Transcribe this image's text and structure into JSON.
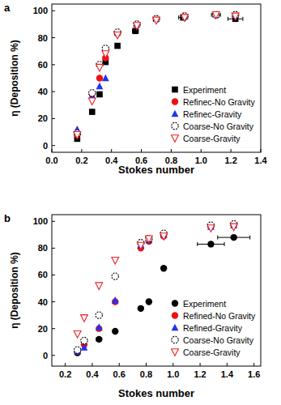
{
  "chart_data": [
    {
      "type": "scatter",
      "title": "a",
      "x_label": "Stokes number",
      "y_label": "η (Deposition %)",
      "xlim": [
        0,
        1.4
      ],
      "ylim": [
        -5,
        105
      ],
      "xticks": [
        {
          "value": 0,
          "label": "0.0"
        },
        0.2,
        0.4,
        0.6,
        0.8,
        {
          "value": 1,
          "label": "1.0"
        },
        1.2,
        1.4
      ],
      "yticks": [
        0,
        20,
        40,
        60,
        80,
        100
      ],
      "legend": "lower right",
      "series": [
        {
          "name": "Experiment",
          "color": "#000000",
          "marker": "square",
          "x": [
            0.17,
            0.27,
            0.32,
            0.36,
            0.44,
            0.56,
            0.88,
            1.1,
            1.23
          ],
          "values": [
            5,
            25,
            38,
            62,
            74,
            85,
            95,
            97,
            94
          ],
          "x_errors": [
            null,
            null,
            null,
            null,
            null,
            0.02,
            0.03,
            0.03,
            0.05
          ]
        },
        {
          "name": "Refinec-No Gravity",
          "color": "#ee1111",
          "marker": "circle",
          "x": [
            0.17,
            0.27,
            0.32,
            0.36,
            0.44,
            0.57,
            0.7,
            0.89,
            1.1,
            1.23
          ],
          "values": [
            8,
            38,
            50,
            65,
            83,
            90,
            94,
            96,
            97,
            97
          ]
        },
        {
          "name": "Refinec-Gravity",
          "color": "#2233ee",
          "marker": "triangle",
          "x": [
            0.17,
            0.27,
            0.32,
            0.36,
            0.44,
            0.57,
            0.7,
            0.89,
            1.1,
            1.23
          ],
          "values": [
            12,
            37,
            44,
            50,
            84,
            90,
            94,
            96,
            97,
            97
          ]
        },
        {
          "name": "Coarse-No Gravity",
          "color": "#000000",
          "marker": "circle_open",
          "x": [
            0.17,
            0.27,
            0.32,
            0.36,
            0.44,
            0.57,
            0.7,
            0.89,
            1.1,
            1.23
          ],
          "values": [
            9,
            39,
            60,
            72,
            84,
            90,
            94,
            96,
            97,
            97
          ]
        },
        {
          "name": "Coarse-Gravity",
          "color": "#ee2222",
          "marker": "triangle_down_open",
          "x": [
            0.17,
            0.27,
            0.32,
            0.36,
            0.44,
            0.57,
            0.7,
            0.89,
            1.1,
            1.23
          ],
          "values": [
            8,
            33,
            58,
            68,
            82,
            89,
            93,
            95,
            97,
            96
          ]
        }
      ]
    },
    {
      "type": "scatter",
      "title": "b",
      "x_label": "Stokes number",
      "y_label": "η (Deposition %)",
      "xlim": [
        0.1,
        1.65
      ],
      "ylim": [
        -8,
        105
      ],
      "xticks": [
        0.2,
        0.4,
        0.6,
        0.8,
        {
          "value": 1,
          "label": "1.0"
        },
        1.2,
        1.4,
        1.6
      ],
      "yticks": [
        0,
        20,
        40,
        60,
        80,
        100
      ],
      "legend": "lower right",
      "series": [
        {
          "name": "Experiment",
          "color": "#000000",
          "marker": "circle",
          "x": [
            0.29,
            0.45,
            0.57,
            0.76,
            0.82,
            0.93,
            1.28,
            1.45
          ],
          "values": [
            2,
            12,
            18,
            35,
            40,
            65,
            83,
            88
          ],
          "x_errors": [
            null,
            0.02,
            null,
            0.01,
            0.01,
            null,
            0.1,
            0.12
          ]
        },
        {
          "name": "Refined-No Gravity",
          "color": "#ee1111",
          "marker": "circle",
          "x": [
            0.29,
            0.34,
            0.45,
            0.57,
            0.76,
            0.82,
            0.93,
            1.28,
            1.45
          ],
          "values": [
            3,
            8,
            20,
            40,
            80,
            85,
            89,
            96,
            97
          ]
        },
        {
          "name": "Refined-Gravity",
          "color": "#2233ee",
          "marker": "triangle",
          "x": [
            0.29,
            0.34,
            0.45,
            0.57,
            0.76,
            0.82,
            0.93,
            1.28,
            1.45
          ],
          "values": [
            3,
            6,
            21,
            41,
            82,
            86,
            90,
            96,
            97
          ]
        },
        {
          "name": "Coarse-No Gravity",
          "color": "#000000",
          "marker": "circle_open",
          "x": [
            0.29,
            0.34,
            0.45,
            0.57,
            0.76,
            0.82,
            0.93,
            1.28,
            1.45
          ],
          "values": [
            4,
            11,
            30,
            59,
            84,
            87,
            91,
            97,
            98
          ]
        },
        {
          "name": "Coarse-Gravity",
          "color": "#ee2222",
          "marker": "triangle_down_open",
          "x": [
            0.29,
            0.34,
            0.45,
            0.57,
            0.76,
            0.82,
            0.93,
            1.28,
            1.45
          ],
          "values": [
            16,
            28,
            52,
            71,
            82,
            87,
            89,
            95,
            96
          ]
        }
      ]
    }
  ]
}
